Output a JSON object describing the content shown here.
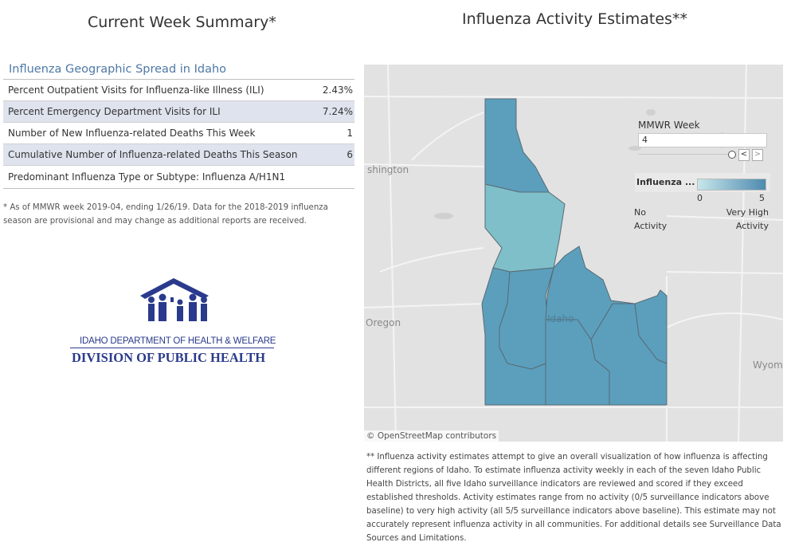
{
  "titles": {
    "left": "Current Week Summary*",
    "right": "Influenza Activity Estimates**"
  },
  "summary": {
    "heading": "Influenza Geographic Spread in Idaho",
    "rows": [
      {
        "label": "Percent Outpatient Visits for Influenza-like Illness (ILI)",
        "value": "2.43%"
      },
      {
        "label": "Percent Emergency Department Visits for ILI",
        "value": "7.24%"
      },
      {
        "label": "Number of New Influenza-related Deaths This Week",
        "value": "1"
      },
      {
        "label": "Cumulative Number of Influenza-related Deaths This Season",
        "value": "6"
      },
      {
        "label": "Predominant Influenza Type or Subtype: Influenza A/H1N1",
        "value": ""
      }
    ],
    "footnote": "* As of MMWR week 2019-04, ending 1/26/19. Data for the 2018-2019 influenza season are provisional and may change as additional reports are received."
  },
  "logo": {
    "line1": "IDAHO DEPARTMENT OF HEALTH & WELFARE",
    "line2": "DIVISION OF PUBLIC HEALTH"
  },
  "map": {
    "labels": {
      "washington": "shington",
      "oregon": "Oregon",
      "idaho": "Idaho",
      "wyoming": "Wyom"
    },
    "credit": "© OpenStreetMap contributors",
    "colors": {
      "background": "#e2e2e2",
      "district_low": "#7fbfca",
      "district_high": "#5b9fbd",
      "border": "#5a6a72"
    }
  },
  "filter": {
    "title": "MMWR Week",
    "value": "4",
    "prev": "<",
    "next": ">"
  },
  "legend": {
    "title": "Influenza ...",
    "min": "0",
    "max": "5",
    "low_line1": "No",
    "low_line2": "Activity",
    "high_line1": "Very High",
    "high_line2": "Activity"
  },
  "footnote2": "** Influenza activity estimates attempt to give an overall visualization of how influenza is affecting different regions of Idaho. To estimate influenza activity weekly in each of the seven Idaho Public Health Districts, all five Idaho surveillance indicators are reviewed and scored if they exceed established thresholds. Activity estimates range from no activity (0/5 surveillance indicators above baseline) to very high activity (all 5/5 surveillance indicators above baseline). This estimate may not accurately represent influenza activity in all communities. For additional details see Surveillance Data Sources and Limitations."
}
